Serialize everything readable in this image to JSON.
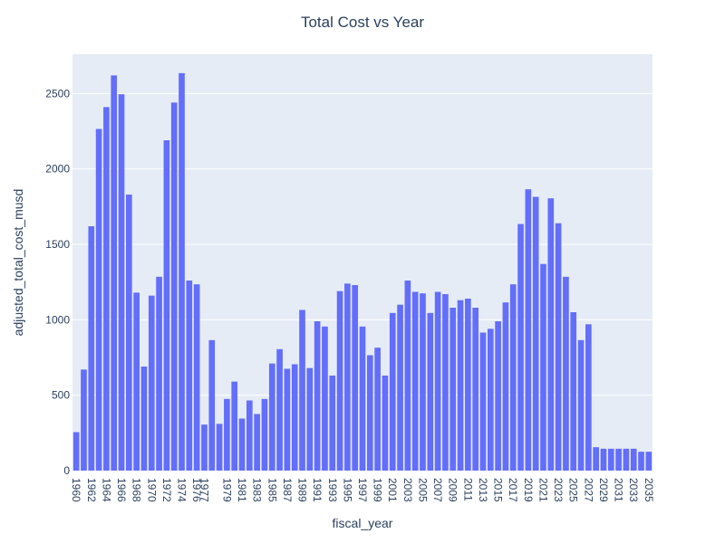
{
  "chart_data": {
    "type": "bar",
    "title": "Total Cost vs Year",
    "xlabel": "fiscal_year",
    "ylabel": "adjusted_total_cost_musd",
    "ylim": [
      0,
      2760
    ],
    "yticks": [
      0,
      500,
      1000,
      1500,
      2000,
      2500
    ],
    "grid": true,
    "legend": "none",
    "bar_color": "#636efa",
    "plot_bg": "#e5ecf6",
    "categories": [
      "1960",
      "1961",
      "1962",
      "1963",
      "1964",
      "1965",
      "1966",
      "1967",
      "1968",
      "1969",
      "1970",
      "1971",
      "1972",
      "1973",
      "1974",
      "1975",
      "1976",
      "1977",
      "1977",
      "1978",
      "1979",
      "1980",
      "1981",
      "1982",
      "1983",
      "1984",
      "1985",
      "1986",
      "1987",
      "1988",
      "1989",
      "1990",
      "1991",
      "1992",
      "1993",
      "1994",
      "1995",
      "1996",
      "1997",
      "1998",
      "1999",
      "2000",
      "2001",
      "2002",
      "2003",
      "2004",
      "2005",
      "2006",
      "2007",
      "2008",
      "2009",
      "2010",
      "2011",
      "2012",
      "2013",
      "2014",
      "2015",
      "2016",
      "2017",
      "2018",
      "2019",
      "2020",
      "2021",
      "2022",
      "2023",
      "2024",
      "2025",
      "2026",
      "2027",
      "2028",
      "2029",
      "2030",
      "2031",
      "2032",
      "2033",
      "2034",
      "2035"
    ],
    "xticks": [
      "1960",
      "1962",
      "1964",
      "1966",
      "1968",
      "1970",
      "1972",
      "1974",
      "1976",
      "1977",
      "1979",
      "1981",
      "1983",
      "1985",
      "1987",
      "1989",
      "1991",
      "1993",
      "1995",
      "1997",
      "1999",
      "2001",
      "2003",
      "2005",
      "2007",
      "2009",
      "2011",
      "2013",
      "2015",
      "2017",
      "2019",
      "2021",
      "2023",
      "2025",
      "2027",
      "2029",
      "2031",
      "2033",
      "2035"
    ],
    "values": [
      255,
      670,
      1620,
      2265,
      2410,
      2620,
      2495,
      1830,
      1180,
      690,
      1160,
      1285,
      2190,
      2440,
      2635,
      1260,
      1235,
      305,
      865,
      310,
      475,
      590,
      345,
      465,
      375,
      475,
      710,
      805,
      675,
      705,
      1065,
      680,
      990,
      955,
      630,
      1190,
      1240,
      1230,
      955,
      765,
      815,
      630,
      1045,
      1100,
      1260,
      1185,
      1175,
      1045,
      1185,
      1170,
      1080,
      1130,
      1140,
      1080,
      915,
      940,
      990,
      1115,
      1235,
      1635,
      1865,
      1815,
      1370,
      1805,
      1640,
      1285,
      1050,
      865,
      970,
      155,
      145,
      145,
      145,
      145,
      145,
      125,
      125
    ]
  }
}
